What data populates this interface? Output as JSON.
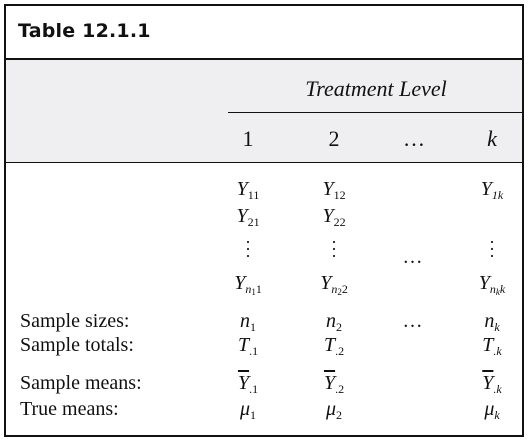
{
  "table": {
    "title": "Table 12.1.1",
    "group_header": "Treatment Level",
    "columns": [
      "1",
      "2",
      "…",
      "k"
    ],
    "observations": {
      "col1": [
        "Y",
        "11",
        "Y",
        "21",
        "Y",
        "n",
        "1",
        "1"
      ],
      "col2": [
        "Y",
        "12",
        "Y",
        "22",
        "Y",
        "n",
        "2",
        "2"
      ],
      "colk": [
        "Y",
        "1k",
        "Y",
        "n",
        "k",
        "k"
      ],
      "dots": "…"
    },
    "rows": [
      {
        "label": "Sample sizes:",
        "c1": [
          "n",
          "1"
        ],
        "c2": [
          "n",
          "2"
        ],
        "c3": "…",
        "ck": [
          "n",
          "k"
        ]
      },
      {
        "label": "Sample totals:",
        "c1": [
          "T",
          ".1"
        ],
        "c2": [
          "T",
          ".2"
        ],
        "ck": [
          "T",
          ".k"
        ]
      },
      {
        "label": "Sample means:",
        "c1": [
          "Y",
          ".1"
        ],
        "c2": [
          "Y",
          ".2"
        ],
        "ck": [
          "Y",
          ".k"
        ]
      },
      {
        "label": "True means:",
        "c1": [
          "μ",
          "1"
        ],
        "c2": [
          "μ",
          "2"
        ],
        "ck": [
          "μ",
          "k"
        ]
      }
    ]
  }
}
